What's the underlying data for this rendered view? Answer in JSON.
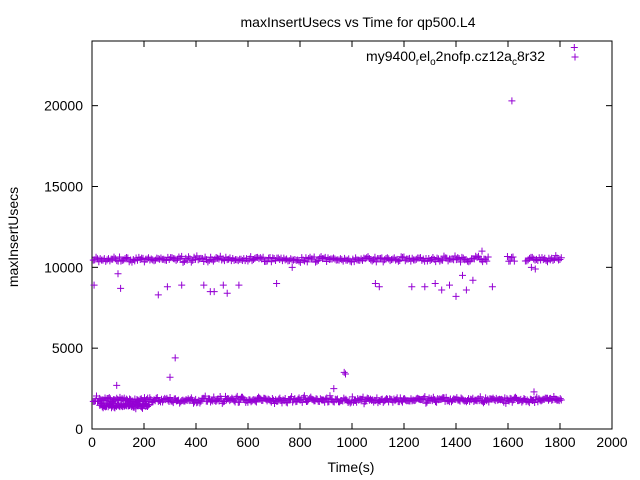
{
  "chart_data": {
    "type": "scatter",
    "title": "maxInsertUsecs vs Time for qp500.L4",
    "xlabel": "Time(s)",
    "ylabel": "maxInsertUsecs",
    "xlim": [
      0,
      2000
    ],
    "ylim": [
      0,
      24000
    ],
    "xticks": [
      0,
      200,
      400,
      600,
      800,
      1000,
      1200,
      1400,
      1600,
      1800,
      2000
    ],
    "yticks": [
      0,
      5000,
      10000,
      15000,
      20000
    ],
    "grid": false,
    "legend_position": "top-right",
    "series": [
      {
        "name": "my9400_rel_o2nofp.cz12a_c8r32",
        "legend_parts": [
          {
            "text": "my9400",
            "sub": false
          },
          {
            "text": "r",
            "sub": true
          },
          {
            "text": "el",
            "sub": false
          },
          {
            "text": "o",
            "sub": true
          },
          {
            "text": "2nofp.cz12a",
            "sub": false
          },
          {
            "text": "c",
            "sub": true
          },
          {
            "text": "8r32",
            "sub": false
          }
        ],
        "color": "#9400d3",
        "marker": "plus",
        "bands": [
          {
            "x_start": 5,
            "x_end": 1805,
            "count": 340,
            "center": 10500,
            "spread": 170,
            "gaps": [
              [
                1525,
                1595
              ],
              [
                1625,
                1665
              ]
            ]
          },
          {
            "x_start": 5,
            "x_end": 1805,
            "count": 440,
            "center": 1800,
            "spread": 180,
            "gaps": []
          },
          {
            "x_start": 30,
            "x_end": 220,
            "count": 60,
            "center": 1450,
            "spread": 160,
            "gaps": []
          }
        ],
        "points": [
          [
            8,
            8900
          ],
          [
            100,
            9600
          ],
          [
            110,
            8700
          ],
          [
            255,
            8300
          ],
          [
            290,
            8800
          ],
          [
            345,
            8900
          ],
          [
            430,
            8900
          ],
          [
            455,
            8500
          ],
          [
            470,
            8500
          ],
          [
            505,
            8900
          ],
          [
            520,
            8400
          ],
          [
            565,
            8900
          ],
          [
            710,
            9000
          ],
          [
            770,
            10000
          ],
          [
            1090,
            9000
          ],
          [
            1105,
            8800
          ],
          [
            1230,
            8800
          ],
          [
            1280,
            8800
          ],
          [
            1320,
            9000
          ],
          [
            1345,
            8600
          ],
          [
            1375,
            8900
          ],
          [
            1400,
            8200
          ],
          [
            1425,
            9500
          ],
          [
            1440,
            8600
          ],
          [
            1465,
            9200
          ],
          [
            1500,
            11000
          ],
          [
            1540,
            8800
          ],
          [
            1690,
            10000
          ],
          [
            1705,
            9900
          ],
          [
            300,
            3200
          ],
          [
            320,
            4400
          ],
          [
            970,
            3500
          ],
          [
            975,
            3400
          ],
          [
            930,
            2500
          ],
          [
            95,
            2700
          ],
          [
            1700,
            2300
          ],
          [
            1615,
            20300
          ],
          [
            1855,
            23600
          ]
        ]
      }
    ]
  }
}
